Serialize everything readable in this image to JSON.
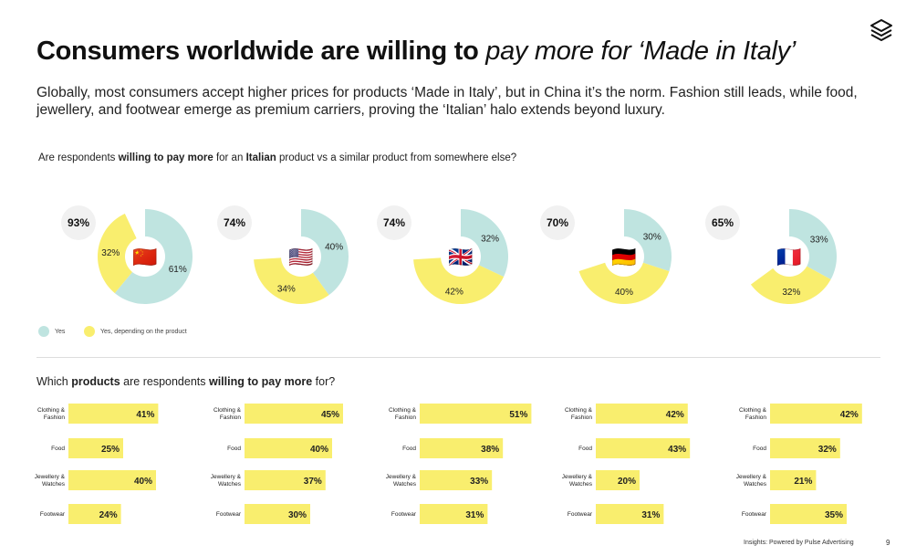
{
  "title": {
    "bold": "Consumers worldwide are willing to",
    "italic": "pay more for ‘Made in Italy’"
  },
  "subtitle": "Globally, most consumers accept higher prices for products ‘Made in Italy’, but in China it’s the norm. Fashion still leads, while food, jewellery, and footwear emerge as premium carriers, proving the ‘Italian’ halo extends beyond luxury.",
  "question1": {
    "pre": "Are respondents ",
    "b1": "willing to pay more",
    "mid": " for an ",
    "b2": "Italian",
    "post": " product vs a similar product from somewhere else?"
  },
  "question2": {
    "pre": "Which ",
    "b1": "products",
    "mid": " are respondents ",
    "b2": "willing to pay more",
    "post": " for?"
  },
  "legend": [
    {
      "label": "Yes",
      "color": "#bfe4e0"
    },
    {
      "label": "Yes, depending on the product",
      "color": "#f9ee6e"
    }
  ],
  "colors": {
    "yes": "#bfe4e0",
    "depending": "#f9ee6e",
    "bar": "#f9ee6e",
    "total_bg": "#f1f1f1"
  },
  "footer": "Insights: Powered by Pulse Advertising",
  "page_number": "9",
  "chart_data": [
    {
      "type": "pie",
      "variant": "donut",
      "series_names": [
        "Yes",
        "Yes, depending on the product"
      ],
      "countries": [
        {
          "flag": "🇨🇳",
          "total": "93%",
          "yes": 61,
          "depending": 32
        },
        {
          "flag": "🇺🇸",
          "total": "74%",
          "yes": 40,
          "depending": 34
        },
        {
          "flag": "🇬🇧",
          "total": "74%",
          "yes": 32,
          "depending": 42
        },
        {
          "flag": "🇩🇪",
          "total": "70%",
          "yes": 30,
          "depending": 40
        },
        {
          "flag": "🇫🇷",
          "total": "65%",
          "yes": 33,
          "depending": 32
        }
      ]
    },
    {
      "type": "bar",
      "orientation": "horizontal",
      "categories": [
        "Clothing & Fashion",
        "Food",
        "Jewellery & Watches",
        "Footwear"
      ],
      "groups": [
        {
          "values": [
            41,
            25,
            40,
            24
          ]
        },
        {
          "values": [
            45,
            40,
            37,
            30
          ]
        },
        {
          "values": [
            51,
            38,
            33,
            31
          ]
        },
        {
          "values": [
            42,
            43,
            20,
            31
          ]
        },
        {
          "values": [
            42,
            32,
            21,
            35
          ]
        }
      ]
    }
  ]
}
